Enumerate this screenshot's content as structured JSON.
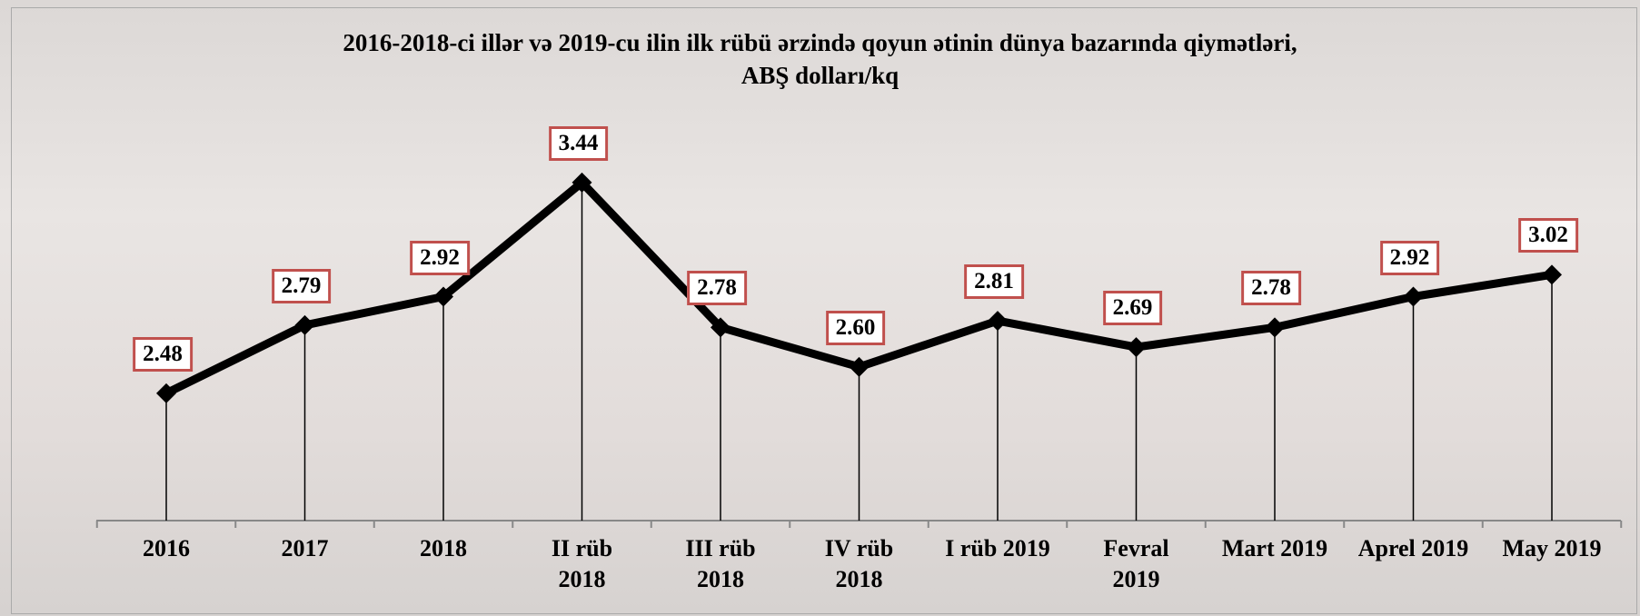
{
  "chart_data": {
    "type": "line",
    "title": "2016-2018-ci illər və 2019-cu ilin ilk rübü ərzində qoyun ətinin dünya bazarında qiymətləri,",
    "unit": "ABŞ dolları/kq",
    "categories": [
      "2016",
      "2017",
      "2018",
      "II rüb\n2018",
      "III rüb\n2018",
      "IV rüb\n2018",
      "I rüb 2019",
      "Fevral\n2019",
      "Mart 2019",
      "Aprel 2019",
      "May 2019"
    ],
    "values": [
      2.48,
      2.79,
      2.92,
      3.44,
      2.78,
      2.6,
      2.81,
      2.69,
      2.78,
      2.92,
      3.02
    ],
    "value_labels": [
      "2.48",
      "2.79",
      "2.92",
      "3.44",
      "2.78",
      "2.60",
      "2.81",
      "2.69",
      "2.78",
      "2.92",
      "3.02"
    ],
    "color": "#000000",
    "label_border_color": "#c0504d",
    "ylim": [
      1.9,
      3.7
    ],
    "drop_lines": true
  }
}
